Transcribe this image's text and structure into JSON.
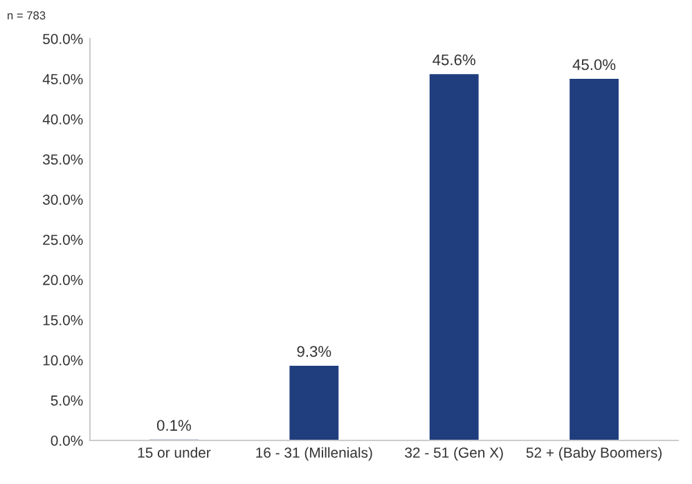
{
  "chart_data": {
    "type": "bar",
    "categories": [
      "15 or under",
      "16 - 31 (Millenials)",
      "32 - 51 (Gen X)",
      "52 + (Baby Boomers)"
    ],
    "values": [
      0.1,
      9.3,
      45.6,
      45.0
    ],
    "value_labels": [
      "0.1%",
      "9.3%",
      "45.6%",
      "45.0%"
    ],
    "color": "#203e7e",
    "ylim": [
      0,
      50
    ],
    "yticks": [
      {
        "value": 0,
        "label": "0.0%"
      },
      {
        "value": 5,
        "label": "5.0%"
      },
      {
        "value": 10,
        "label": "10.0%"
      },
      {
        "value": 15,
        "label": "15.0%"
      },
      {
        "value": 20,
        "label": "20.0%"
      },
      {
        "value": 25,
        "label": "25.0%"
      },
      {
        "value": 30,
        "label": "30.0%"
      },
      {
        "value": 35,
        "label": "35.0%"
      },
      {
        "value": 40,
        "label": "40.0%"
      },
      {
        "value": 45,
        "label": "45.0%"
      },
      {
        "value": 50,
        "label": "50.0%"
      }
    ],
    "annotations": [
      "n = 783"
    ],
    "grid": false
  }
}
